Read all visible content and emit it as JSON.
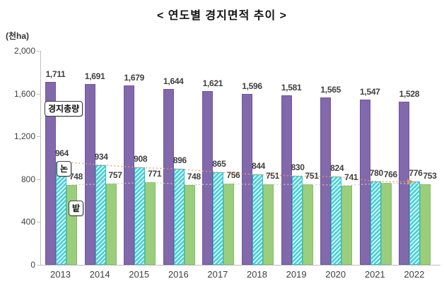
{
  "title": "< 연도별 경지면적 추이 >",
  "y_axis_unit": "(천ha)",
  "chart_data": {
    "type": "bar",
    "title": "연도별 경지면적 추이",
    "categories": [
      "2013",
      "2014",
      "2015",
      "2016",
      "2017",
      "2018",
      "2019",
      "2020",
      "2021",
      "2022"
    ],
    "series": [
      {
        "name": "경지총량",
        "color": "#8169AB",
        "edge": "#6E57A0",
        "values": [
          1711,
          1691,
          1679,
          1644,
          1621,
          1596,
          1581,
          1565,
          1547,
          1528
        ]
      },
      {
        "name": "논",
        "color": "#45D0D8",
        "stripe": "#D9F6F8",
        "edge": "#2FBFC8",
        "hatch": true,
        "values": [
          964,
          934,
          908,
          896,
          865,
          844,
          830,
          824,
          780,
          776
        ]
      },
      {
        "name": "밭",
        "color": "#9BCE7C",
        "edge": "#83BD61",
        "values": [
          748,
          757,
          771,
          748,
          756,
          751,
          751,
          741,
          766,
          753
        ]
      }
    ],
    "ylim": [
      0,
      2000
    ],
    "yticks": [
      "0",
      "400",
      "800",
      "1,200",
      "1,600",
      "2,000"
    ],
    "ytick_values": [
      0,
      400,
      800,
      1200,
      1600,
      2000
    ],
    "grid": false,
    "legend_position": "on-chart-callouts",
    "trend_lines": [
      {
        "series": "논",
        "series_index": 1,
        "color": "#ED9A63",
        "style": "dotted",
        "arrow_end": true,
        "arrow_color": "#C89868"
      },
      {
        "series": "밭",
        "series_index": 2,
        "color": "#C9C9C9",
        "style": "dotted",
        "arrow_end": false
      }
    ]
  }
}
